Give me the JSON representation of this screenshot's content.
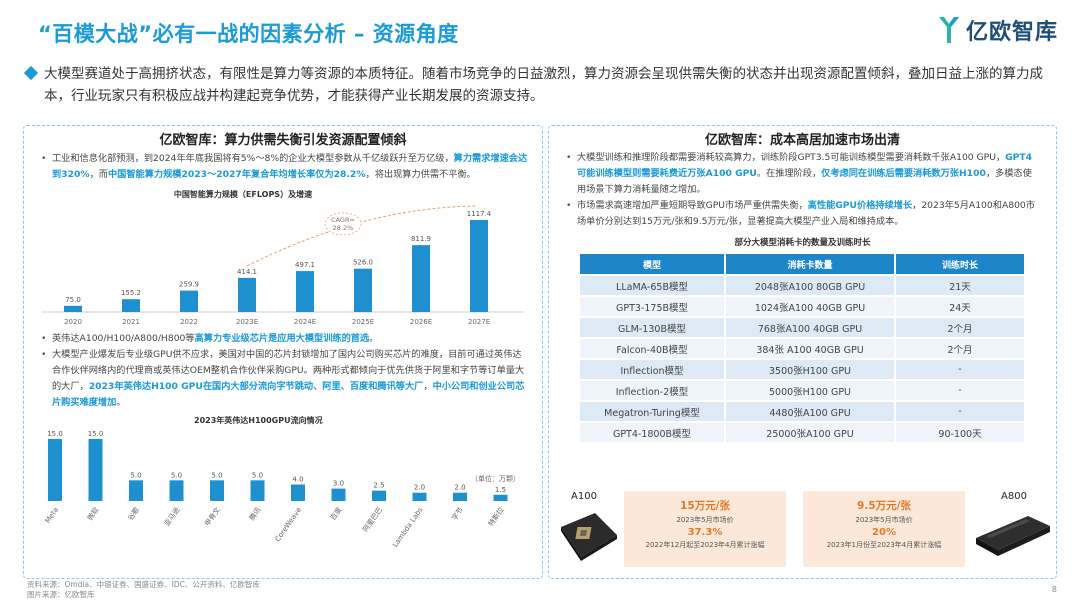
{
  "header": {
    "title": "“百模大战”必有一战的因素分析 – 资源角度",
    "logo_text": "亿欧智库"
  },
  "intro": "大模型赛道处于高拥挤状态，有限性是算力等资源的本质特征。随着市场竞争的日益激烈，算力资源会呈现供需失衡的状态并出现资源配置倾斜，叠加日益上涨的算力成本，行业玩家只有积极应战并构建起竞争优势，才能获得产业长期发展的资源支持。",
  "left_panel": {
    "title": "亿欧智库：算力供需失衡引发资源配置倾斜",
    "bullet1": {
      "p1": "工业和信息化部预测，到2024年年底我国将有5%～8%的企业大模型参数从千亿级跃升至万亿级，",
      "h1": "算力需求增速会达到320%",
      "p2": "，而",
      "h2": "中国智能算力规模2023～2027年复合年均增长率仅为28.2%",
      "p3": "，将出现算力供需不平衡。"
    },
    "bullet2": {
      "p1": "英伟达A100/H100/A800/H800等",
      "h1": "高算力专业级芯片是应用大模型训练的首选",
      "p2": "。"
    },
    "bullet3": {
      "p1": "大模型产业爆发后专业级GPU供不应求，美国对中国的芯片封锁增加了国内公司购买芯片的难度，目前可通过英伟达合作伙伴网络内的代理商或英伟达OEM整机合作伙伴采购GPU。两种形式都倾向于优先供货于阿里和字节等订单量大的大厂，",
      "h1": "2023年英伟达H100 GPU在国内大部分流向字节跳动、阿里、百度和腾讯等大厂",
      "p2": "，",
      "h2": "中小公司和创业公司芯片购买难度增加",
      "p3": "。"
    }
  },
  "chart_data": [
    {
      "type": "bar",
      "title": "中国智能算力规模（EFLOPS）及增速",
      "categories": [
        "2020",
        "2021",
        "2022",
        "2023E",
        "2024E",
        "2025E",
        "2026E",
        "2027E"
      ],
      "values": [
        75.0,
        155.2,
        259.9,
        414.1,
        497.1,
        526.0,
        811.9,
        1117.4
      ],
      "annotation": "CAGR=\n28.2%",
      "color": "#1e90d0"
    },
    {
      "type": "bar",
      "title": "2023年英伟达H100GPU流向情况",
      "unit_label": "（单位：万颗）",
      "categories": [
        "Meta",
        "微软",
        "谷歌",
        "亚马逊",
        "甲骨文",
        "腾讯",
        "CoreWeave",
        "百度",
        "阿里巴巴",
        "Lambda Labs",
        "字节",
        "特斯拉"
      ],
      "values": [
        15.0,
        15.0,
        5.0,
        5.0,
        5.0,
        5.0,
        4.0,
        3.0,
        2.5,
        2.0,
        2.0,
        1.5
      ],
      "color": "#1e90d0"
    }
  ],
  "right_panel": {
    "title": "亿欧智库：成本高居加速市场出清",
    "bullet1": {
      "p1": "大模型训练和推理阶段都需要消耗较高算力，训练阶段GPT3.5可能训练模型需要消耗数千张A100 GPU，",
      "h1": "GPT4可能训练模型则需要耗费近万张A100 GPU",
      "p2": "。在推理阶段，",
      "h2": "仅考虑同在训练后需要消耗数万张H100",
      "p3": "，多模态使用场景下算力消耗量随之增加。"
    },
    "bullet2": {
      "p1": "市场需求高速增加严重短期导致GPU市场严重供需失衡，",
      "h1": "高性能GPU价格持续增长",
      "p2": "，2023年5月A100和A800市场单价分别达到15万元/张和9.5万元/张，显著提高大模型产业入局和维持成本。"
    },
    "table": {
      "title": "部分大模型消耗卡的数量及训练时长",
      "headers": [
        "模型",
        "消耗卡数量",
        "训练时长"
      ],
      "rows": [
        [
          "LLaMA-65B模型",
          "2048张A100 80GB GPU",
          "21天"
        ],
        [
          "GPT3-175B模型",
          "1024张A100 40GB GPU",
          "24天"
        ],
        [
          "GLM-130B模型",
          "768张A100 40GB GPU",
          "2个月"
        ],
        [
          "Falcon-40B模型",
          "384张 A100 40GB GPU",
          "2个月"
        ],
        [
          "Inflection模型",
          "3500张H100 GPU",
          "-"
        ],
        [
          "Inflection-2模型",
          "5000张H100 GPU",
          "-"
        ],
        [
          "Megatron-Turing模型",
          "4480张A100 GPU",
          "-"
        ],
        [
          "GPT4-1800B模型",
          "25000张A100 GPU",
          "90-100天"
        ]
      ]
    },
    "prices": [
      {
        "label": "A100",
        "price": "15万元/张",
        "date": "2023年5月市场价",
        "pct": "37.3%",
        "note": "2022年12月起至2023年4月累计涨幅"
      },
      {
        "label": "A800",
        "price": "9.5万元/张",
        "date": "2023年5月市场价",
        "pct": "20%",
        "note": "2023年1月份至2023年4月累计涨幅"
      }
    ]
  },
  "footer": {
    "line1": "资料来源：Omdia、中银证券、国盛证券、IDC、公开资料、亿欧智库",
    "line2": "图片来源：亿欧智库"
  },
  "page_number": "8"
}
